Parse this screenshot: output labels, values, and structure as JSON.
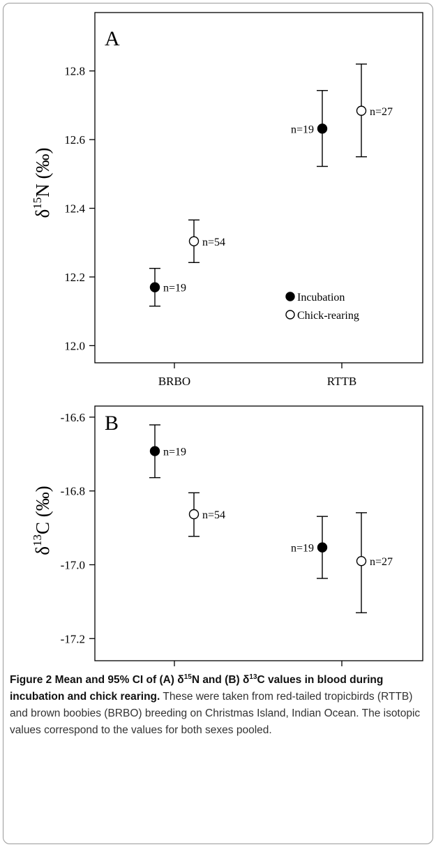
{
  "chart_data": [
    {
      "type": "scatter",
      "panel_label": "A",
      "ylabel": {
        "prefix": "δ",
        "sup": "15",
        "suffix": "N (‰)"
      },
      "categories": [
        "BRBO",
        "RTTB"
      ],
      "ylim": [
        11.95,
        12.97
      ],
      "yticks": [
        "12.0",
        "12.2",
        "12.4",
        "12.6",
        "12.8"
      ],
      "series": [
        {
          "name": "Incubation",
          "fill": "#000000",
          "points": [
            {
              "category": "BRBO",
              "mean": 12.17,
              "ci_low": 12.115,
              "ci_high": 12.225,
              "n_label": "n=19",
              "label_side": "right"
            },
            {
              "category": "RTTB",
              "mean": 12.632,
              "ci_low": 12.522,
              "ci_high": 12.743,
              "n_label": "n=19",
              "label_side": "left"
            }
          ]
        },
        {
          "name": "Chick-rearing",
          "fill": "#ffffff",
          "points": [
            {
              "category": "BRBO",
              "mean": 12.304,
              "ci_low": 12.242,
              "ci_high": 12.366,
              "n_label": "n=54",
              "label_side": "right"
            },
            {
              "category": "RTTB",
              "mean": 12.684,
              "ci_low": 12.55,
              "ci_high": 12.82,
              "n_label": "n=27",
              "label_side": "right"
            }
          ]
        }
      ],
      "legend": {
        "placement": "bottom-right",
        "items": [
          "Incubation",
          "Chick-rearing"
        ]
      }
    },
    {
      "type": "scatter",
      "panel_label": "B",
      "ylabel": {
        "prefix": "δ",
        "sup": "13",
        "suffix": "C (‰)"
      },
      "categories": [
        "BRBO",
        "RTTB"
      ],
      "ylim": [
        -17.26,
        -16.57
      ],
      "yticks": [
        "-16.6",
        "-16.8",
        "-17.0",
        "-17.2"
      ],
      "series": [
        {
          "name": "Incubation",
          "fill": "#000000",
          "points": [
            {
              "category": "BRBO",
              "mean": -16.692,
              "ci_low": -16.764,
              "ci_high": -16.621,
              "n_label": "n=19",
              "label_side": "right"
            },
            {
              "category": "RTTB",
              "mean": -16.953,
              "ci_low": -17.037,
              "ci_high": -16.869,
              "n_label": "n=19",
              "label_side": "left"
            }
          ]
        },
        {
          "name": "Chick-rearing",
          "fill": "#ffffff",
          "points": [
            {
              "category": "BRBO",
              "mean": -16.863,
              "ci_low": -16.923,
              "ci_high": -16.805,
              "n_label": "n=54",
              "label_side": "right"
            },
            {
              "category": "RTTB",
              "mean": -16.99,
              "ci_low": -17.13,
              "ci_high": -16.859,
              "n_label": "n=27",
              "label_side": "right"
            }
          ]
        }
      ]
    }
  ],
  "caption": {
    "lead_parts": [
      "Figure 2 Mean and 95% CI of (A) δ",
      "15",
      "N and (B) δ",
      "13",
      "C values in blood during incubation and chick rearing."
    ],
    "body": " These were taken from red-tailed tropicbirds (RTTB) and brown boobies (BRBO) breeding on Christmas Island, Indian Ocean. The isotopic values correspond to the values for both sexes pooled."
  }
}
